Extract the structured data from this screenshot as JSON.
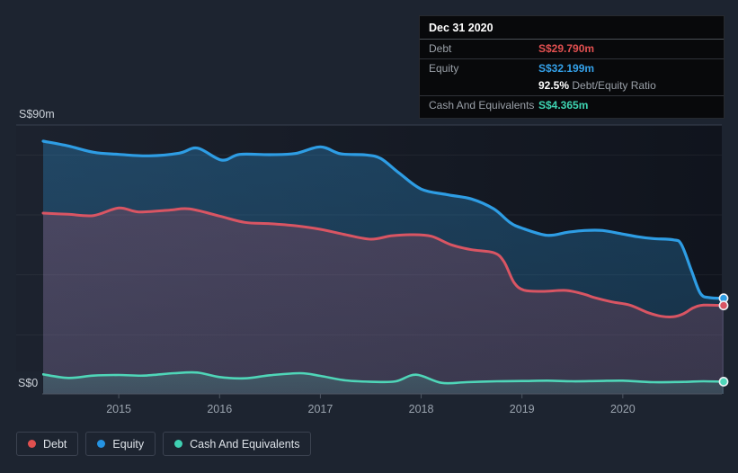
{
  "tooltip": {
    "title": "Dec 31 2020",
    "debt_label": "Debt",
    "debt_value": "S$29.790m",
    "equity_label": "Equity",
    "equity_value": "S$32.199m",
    "ratio_value": "92.5%",
    "ratio_label": "Debt/Equity Ratio",
    "cash_label": "Cash And Equivalents",
    "cash_value": "S$4.365m"
  },
  "legend": {
    "items": [
      {
        "label": "Debt",
        "color": "#e0504f"
      },
      {
        "label": "Equity",
        "color": "#2593e2"
      },
      {
        "label": "Cash And Equivalents",
        "color": "#3fd0b2"
      }
    ]
  },
  "colors": {
    "background": "#1d2430",
    "debt": "#d95563",
    "equity": "#2e9de4",
    "cash": "#4fd6b8",
    "tooltip_debt_value": "#e25050",
    "tooltip_equity_value": "#34a1e9",
    "tooltip_cash_value": "#3ed4b2"
  },
  "chart_data": {
    "type": "area",
    "x_range": [
      2014.25,
      2021.0
    ],
    "y_axis": {
      "top_label": "S$90m",
      "zero_label": "S$0",
      "min": 0,
      "max": 90,
      "gridline_values": [
        80,
        60,
        40,
        20
      ]
    },
    "x_axis": {
      "ticks": [
        {
          "t": 2015,
          "label": "2015"
        },
        {
          "t": 2016,
          "label": "2016"
        },
        {
          "t": 2017,
          "label": "2017"
        },
        {
          "t": 2018,
          "label": "2018"
        },
        {
          "t": 2019,
          "label": "2019"
        },
        {
          "t": 2020,
          "label": "2020"
        }
      ]
    },
    "series": [
      {
        "name": "Equity",
        "color": "#2e9de4",
        "fill_top": "rgba(46,157,228,0.30)",
        "fill_bottom": "rgba(46,157,228,0.20)",
        "line_width": 3.2,
        "end_value": 32.199,
        "points": [
          [
            2014.25,
            84.6
          ],
          [
            2014.5,
            83.0
          ],
          [
            2014.75,
            80.9
          ],
          [
            2015.0,
            80.2
          ],
          [
            2015.3,
            79.7
          ],
          [
            2015.6,
            80.6
          ],
          [
            2015.78,
            82.3
          ],
          [
            2016.02,
            78.3
          ],
          [
            2016.2,
            80.2
          ],
          [
            2016.5,
            80.1
          ],
          [
            2016.75,
            80.5
          ],
          [
            2017.0,
            82.7
          ],
          [
            2017.2,
            80.4
          ],
          [
            2017.45,
            80.0
          ],
          [
            2017.6,
            78.8
          ],
          [
            2017.78,
            74.0
          ],
          [
            2018.0,
            68.6
          ],
          [
            2018.25,
            66.8
          ],
          [
            2018.5,
            65.3
          ],
          [
            2018.72,
            62.0
          ],
          [
            2018.88,
            57.5
          ],
          [
            2019.0,
            55.6
          ],
          [
            2019.25,
            53.2
          ],
          [
            2019.45,
            54.2
          ],
          [
            2019.62,
            54.8
          ],
          [
            2019.8,
            54.8
          ],
          [
            2020.0,
            53.6
          ],
          [
            2020.15,
            52.7
          ],
          [
            2020.3,
            52.1
          ],
          [
            2020.5,
            51.7
          ],
          [
            2020.58,
            50.2
          ],
          [
            2020.68,
            41.5
          ],
          [
            2020.77,
            33.8
          ],
          [
            2020.86,
            32.4
          ],
          [
            2021.0,
            32.199
          ]
        ]
      },
      {
        "name": "Debt",
        "color": "#d95563",
        "fill_top": "rgba(221,82,102,0.22)",
        "fill_bottom": "rgba(221,82,102,0.17)",
        "line_width": 3,
        "end_value": 29.79,
        "points": [
          [
            2014.25,
            60.6
          ],
          [
            2014.5,
            60.2
          ],
          [
            2014.75,
            59.8
          ],
          [
            2015.0,
            62.3
          ],
          [
            2015.2,
            61.0
          ],
          [
            2015.5,
            61.6
          ],
          [
            2015.7,
            62.0
          ],
          [
            2016.0,
            59.6
          ],
          [
            2016.25,
            57.5
          ],
          [
            2016.5,
            57.1
          ],
          [
            2016.75,
            56.4
          ],
          [
            2017.0,
            55.2
          ],
          [
            2017.25,
            53.4
          ],
          [
            2017.5,
            51.9
          ],
          [
            2017.7,
            53.0
          ],
          [
            2017.9,
            53.4
          ],
          [
            2018.1,
            52.9
          ],
          [
            2018.3,
            50.0
          ],
          [
            2018.5,
            48.4
          ],
          [
            2018.72,
            47.4
          ],
          [
            2018.82,
            44.5
          ],
          [
            2018.92,
            37.5
          ],
          [
            2019.02,
            34.9
          ],
          [
            2019.2,
            34.5
          ],
          [
            2019.44,
            34.8
          ],
          [
            2019.62,
            33.5
          ],
          [
            2019.71,
            32.5
          ],
          [
            2019.89,
            31.0
          ],
          [
            2020.07,
            29.9
          ],
          [
            2020.25,
            27.4
          ],
          [
            2020.38,
            26.2
          ],
          [
            2020.5,
            26.0
          ],
          [
            2020.6,
            27.0
          ],
          [
            2020.7,
            29.0
          ],
          [
            2020.8,
            29.9
          ],
          [
            2021.0,
            29.79
          ]
        ]
      },
      {
        "name": "Cash And Equivalents",
        "color": "#4fd6b8",
        "fill_top": "rgba(79,214,184,0.18)",
        "fill_bottom": "rgba(79,214,184,0.12)",
        "line_width": 2.6,
        "end_value": 4.365,
        "points": [
          [
            2014.25,
            6.8
          ],
          [
            2014.5,
            5.6
          ],
          [
            2014.75,
            6.4
          ],
          [
            2015.0,
            6.6
          ],
          [
            2015.25,
            6.4
          ],
          [
            2015.55,
            7.2
          ],
          [
            2015.78,
            7.4
          ],
          [
            2016.0,
            5.9
          ],
          [
            2016.25,
            5.5
          ],
          [
            2016.5,
            6.5
          ],
          [
            2016.8,
            7.2
          ],
          [
            2017.0,
            6.3
          ],
          [
            2017.25,
            4.8
          ],
          [
            2017.55,
            4.3
          ],
          [
            2017.75,
            4.5
          ],
          [
            2017.95,
            6.7
          ],
          [
            2018.2,
            4.0
          ],
          [
            2018.45,
            4.2
          ],
          [
            2018.75,
            4.5
          ],
          [
            2019.0,
            4.6
          ],
          [
            2019.25,
            4.7
          ],
          [
            2019.5,
            4.5
          ],
          [
            2019.75,
            4.6
          ],
          [
            2020.0,
            4.7
          ],
          [
            2020.3,
            4.2
          ],
          [
            2020.6,
            4.3
          ],
          [
            2020.8,
            4.5
          ],
          [
            2021.0,
            4.365
          ]
        ]
      }
    ]
  }
}
